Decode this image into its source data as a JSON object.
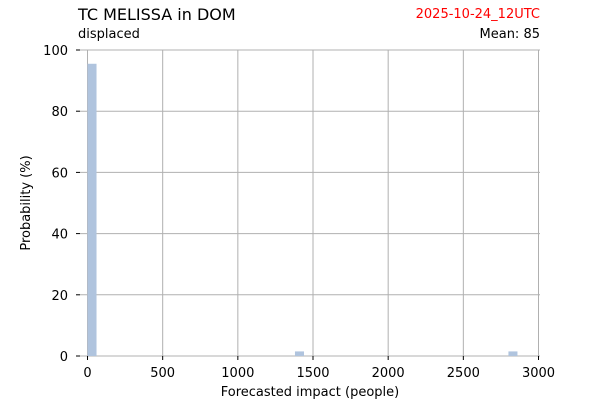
{
  "header": {
    "title": "TC MELISSA in DOM",
    "subtitle": "displaced",
    "date": "2025-10-24_12UTC",
    "mean": "Mean: 85"
  },
  "colors": {
    "bar": "#b0c4de",
    "grid": "#b0b0b0",
    "date": "#ff0000"
  },
  "chart_data": {
    "type": "bar",
    "title": "TC MELISSA in DOM",
    "subtitle": "displaced",
    "xlabel": "Forecasted impact (people)",
    "ylabel": "Probability (%)",
    "xlim": [
      -50,
      3010
    ],
    "ylim": [
      0,
      100
    ],
    "xticks": [
      0,
      500,
      1000,
      1500,
      2000,
      2500,
      3000
    ],
    "yticks": [
      0,
      20,
      40,
      60,
      80,
      100
    ],
    "bin_width": 60,
    "bars": [
      {
        "x0": 0,
        "x1": 60,
        "value": 95.5
      },
      {
        "x0": 1380,
        "x1": 1440,
        "value": 1.5
      },
      {
        "x0": 2800,
        "x1": 2860,
        "value": 1.5
      }
    ],
    "grid": true,
    "legend": "none"
  }
}
